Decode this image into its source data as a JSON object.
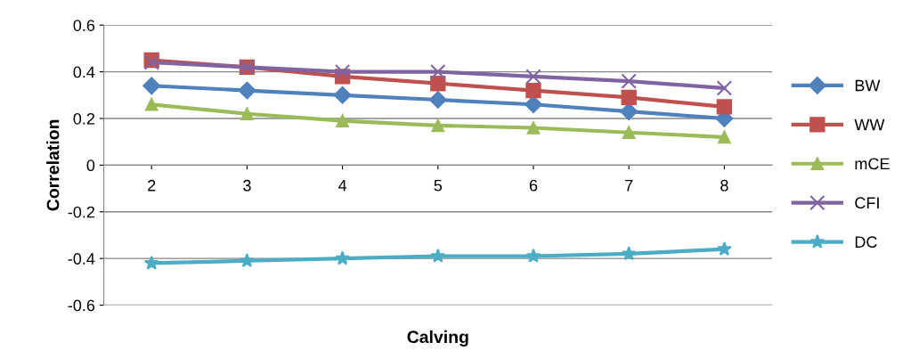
{
  "chart_data": {
    "type": "line",
    "xlabel": "Calving",
    "ylabel": "Correlation",
    "categories": [
      "2",
      "3",
      "4",
      "5",
      "6",
      "7",
      "8"
    ],
    "ylim": [
      -0.6,
      0.6
    ],
    "yticks": [
      {
        "value": -0.6,
        "label": "-0.6"
      },
      {
        "value": -0.4,
        "label": "-0.4"
      },
      {
        "value": -0.2,
        "label": "-0.2"
      },
      {
        "value": 0,
        "label": "0"
      },
      {
        "value": 0.2,
        "label": "0.2"
      },
      {
        "value": 0.4,
        "label": "0.4"
      },
      {
        "value": 0.6,
        "label": "0.6"
      }
    ],
    "grid": "y",
    "legend": "right",
    "line_style": "solid",
    "series": [
      {
        "name": "BW",
        "color": "#4f81bd",
        "marker": "diamond",
        "values": [
          0.34,
          0.32,
          0.3,
          0.28,
          0.26,
          0.23,
          0.2
        ]
      },
      {
        "name": "WW",
        "color": "#c0504d",
        "marker": "square",
        "values": [
          0.45,
          0.42,
          0.38,
          0.35,
          0.32,
          0.29,
          0.25
        ]
      },
      {
        "name": "mCE",
        "color": "#9bbb59",
        "marker": "triangle",
        "values": [
          0.26,
          0.22,
          0.19,
          0.17,
          0.16,
          0.14,
          0.12
        ]
      },
      {
        "name": "CFI",
        "color": "#8064a2",
        "marker": "cross",
        "values": [
          0.44,
          0.42,
          0.4,
          0.4,
          0.38,
          0.36,
          0.33
        ]
      },
      {
        "name": "DC",
        "color": "#4bacc6",
        "marker": "star",
        "values": [
          -0.42,
          -0.41,
          -0.4,
          -0.39,
          -0.39,
          -0.38,
          -0.36
        ]
      }
    ]
  }
}
